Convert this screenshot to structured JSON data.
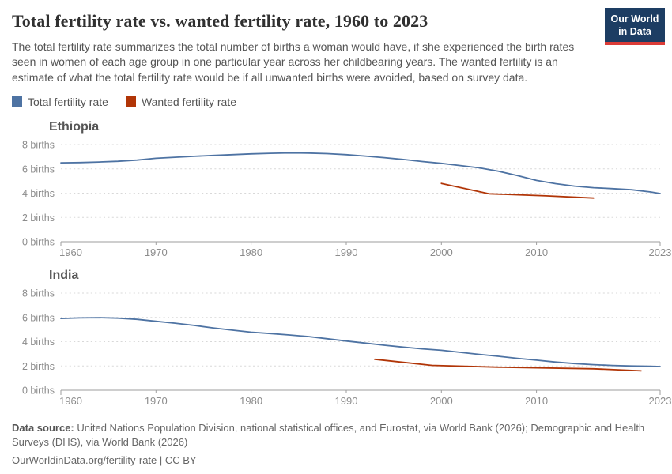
{
  "header": {
    "title": "Total fertility rate vs. wanted fertility rate, 1960 to 2023",
    "subtitle": "The total fertility rate summarizes the total number of births a woman would have, if she experienced the birth rates seen in women of each age group in one particular year across her childbearing years. The wanted fertility is an estimate of what the total fertility rate would be if all unwanted births were avoided, based on survey data.",
    "logo": {
      "line1": "Our World",
      "line2": "in Data",
      "bg_color": "#1d3d63",
      "bar_color": "#dc3c37"
    }
  },
  "legend": {
    "items": [
      {
        "label": "Total fertility rate",
        "color": "#4e73a3"
      },
      {
        "label": "Wanted fertility rate",
        "color": "#b13507"
      }
    ]
  },
  "chart_data": [
    {
      "type": "line",
      "title": "Ethiopia",
      "xlabel": "",
      "ylabel": "births",
      "xlim": [
        1960,
        2023
      ],
      "ylim": [
        0,
        8
      ],
      "grid": "dashed-horizontal",
      "legend_position": "top-left-shared",
      "y_ticks": [
        0,
        2,
        4,
        6,
        8
      ],
      "y_tick_labels": [
        "0 births",
        "2 births",
        "4 births",
        "6 births",
        "8 births"
      ],
      "x_ticks": [
        1960,
        1970,
        1980,
        1990,
        2000,
        2010,
        2023
      ],
      "x_tick_labels": [
        "1960",
        "1970",
        "1980",
        "1990",
        "2000",
        "2010",
        "2023"
      ],
      "series": [
        {
          "name": "Total fertility rate",
          "color": "#4e73a3",
          "points": [
            [
              1960,
              6.5
            ],
            [
              1962,
              6.52
            ],
            [
              1964,
              6.56
            ],
            [
              1966,
              6.62
            ],
            [
              1968,
              6.72
            ],
            [
              1970,
              6.87
            ],
            [
              1972,
              6.95
            ],
            [
              1974,
              7.03
            ],
            [
              1976,
              7.1
            ],
            [
              1978,
              7.17
            ],
            [
              1980,
              7.23
            ],
            [
              1982,
              7.28
            ],
            [
              1984,
              7.31
            ],
            [
              1986,
              7.3
            ],
            [
              1988,
              7.25
            ],
            [
              1990,
              7.17
            ],
            [
              1992,
              7.05
            ],
            [
              1994,
              6.92
            ],
            [
              1996,
              6.77
            ],
            [
              1998,
              6.6
            ],
            [
              2000,
              6.45
            ],
            [
              2002,
              6.27
            ],
            [
              2004,
              6.08
            ],
            [
              2006,
              5.8
            ],
            [
              2008,
              5.45
            ],
            [
              2010,
              5.05
            ],
            [
              2012,
              4.78
            ],
            [
              2014,
              4.58
            ],
            [
              2016,
              4.45
            ],
            [
              2018,
              4.37
            ],
            [
              2020,
              4.28
            ],
            [
              2022,
              4.1
            ],
            [
              2023,
              3.97
            ]
          ]
        },
        {
          "name": "Wanted fertility rate",
          "color": "#b13507",
          "points": [
            [
              2000,
              4.8
            ],
            [
              2005,
              3.95
            ],
            [
              2011,
              3.78
            ],
            [
              2016,
              3.6
            ]
          ]
        }
      ]
    },
    {
      "type": "line",
      "title": "India",
      "xlabel": "",
      "ylabel": "births",
      "xlim": [
        1960,
        2023
      ],
      "ylim": [
        0,
        8
      ],
      "grid": "dashed-horizontal",
      "legend_position": "top-left-shared",
      "y_ticks": [
        0,
        2,
        4,
        6,
        8
      ],
      "y_tick_labels": [
        "0 births",
        "2 births",
        "4 births",
        "6 births",
        "8 births"
      ],
      "x_ticks": [
        1960,
        1970,
        1980,
        1990,
        2000,
        2010,
        2023
      ],
      "x_tick_labels": [
        "1960",
        "1970",
        "1980",
        "1990",
        "2000",
        "2010",
        "2023"
      ],
      "series": [
        {
          "name": "Total fertility rate",
          "color": "#4e73a3",
          "points": [
            [
              1960,
              5.91
            ],
            [
              1962,
              5.96
            ],
            [
              1964,
              5.98
            ],
            [
              1966,
              5.94
            ],
            [
              1968,
              5.84
            ],
            [
              1970,
              5.68
            ],
            [
              1972,
              5.52
            ],
            [
              1974,
              5.34
            ],
            [
              1976,
              5.13
            ],
            [
              1978,
              4.95
            ],
            [
              1980,
              4.78
            ],
            [
              1982,
              4.67
            ],
            [
              1984,
              4.55
            ],
            [
              1986,
              4.42
            ],
            [
              1988,
              4.24
            ],
            [
              1990,
              4.05
            ],
            [
              1992,
              3.88
            ],
            [
              1994,
              3.71
            ],
            [
              1996,
              3.55
            ],
            [
              1998,
              3.41
            ],
            [
              2000,
              3.29
            ],
            [
              2002,
              3.12
            ],
            [
              2004,
              2.95
            ],
            [
              2006,
              2.8
            ],
            [
              2008,
              2.63
            ],
            [
              2010,
              2.48
            ],
            [
              2012,
              2.32
            ],
            [
              2014,
              2.2
            ],
            [
              2016,
              2.11
            ],
            [
              2018,
              2.04
            ],
            [
              2020,
              2.0
            ],
            [
              2022,
              1.97
            ],
            [
              2023,
              1.95
            ]
          ]
        },
        {
          "name": "Wanted fertility rate",
          "color": "#b13507",
          "points": [
            [
              1993,
              2.55
            ],
            [
              1999,
              2.05
            ],
            [
              2006,
              1.9
            ],
            [
              2016,
              1.77
            ],
            [
              2021,
              1.6
            ]
          ]
        }
      ]
    }
  ],
  "footer": {
    "source_label": "Data source:",
    "source_text": " United Nations Population Division, national statistical offices, and Eurostat, via World Bank (2026); Demographic and Health Surveys (DHS), via World Bank (2026)",
    "link_line": "OurWorldinData.org/fertility-rate | CC BY"
  }
}
